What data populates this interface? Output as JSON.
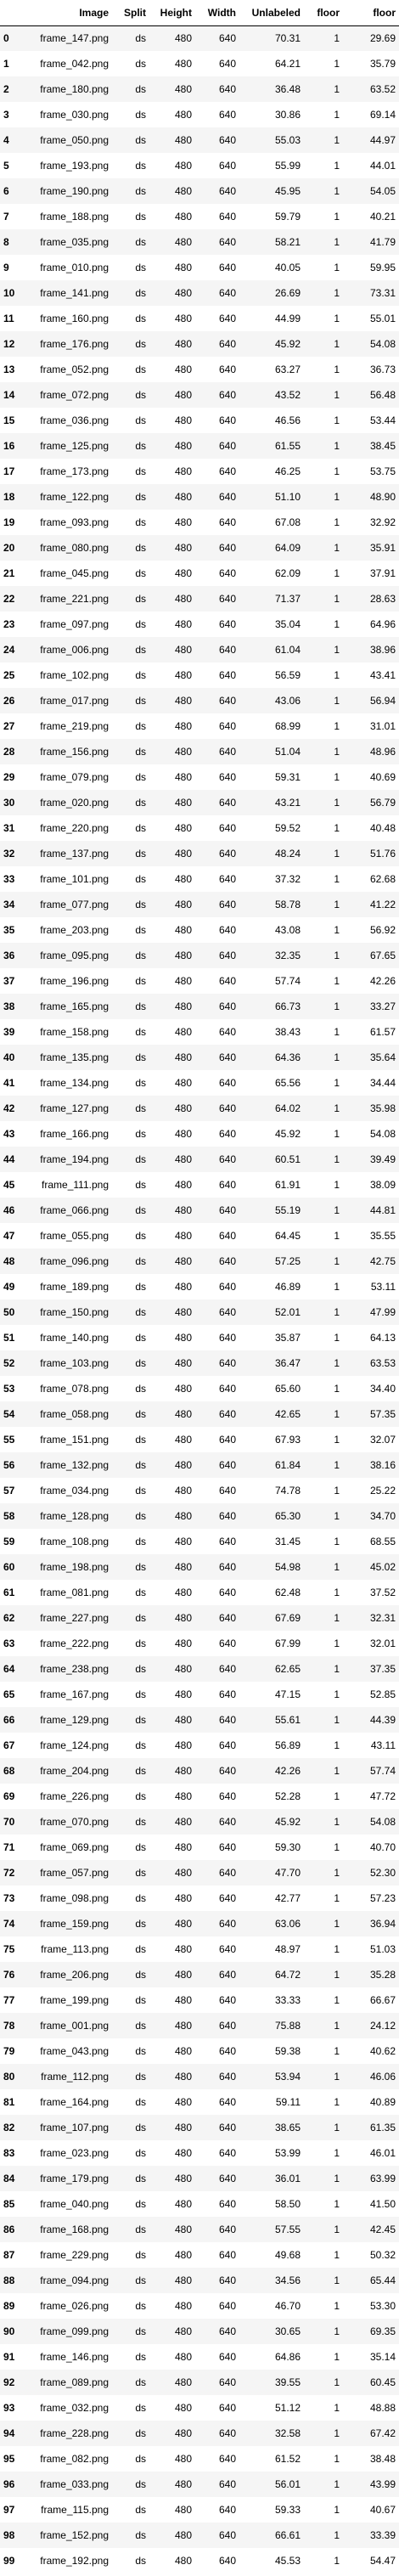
{
  "table": {
    "columns": [
      "",
      "Image",
      "Split",
      "Height",
      "Width",
      "Unlabeled",
      "floor",
      "floor"
    ],
    "rows": [
      [
        "0",
        "frame_147.png",
        "ds",
        "480",
        "640",
        "70.31",
        "1",
        "29.69"
      ],
      [
        "1",
        "frame_042.png",
        "ds",
        "480",
        "640",
        "64.21",
        "1",
        "35.79"
      ],
      [
        "2",
        "frame_180.png",
        "ds",
        "480",
        "640",
        "36.48",
        "1",
        "63.52"
      ],
      [
        "3",
        "frame_030.png",
        "ds",
        "480",
        "640",
        "30.86",
        "1",
        "69.14"
      ],
      [
        "4",
        "frame_050.png",
        "ds",
        "480",
        "640",
        "55.03",
        "1",
        "44.97"
      ],
      [
        "5",
        "frame_193.png",
        "ds",
        "480",
        "640",
        "55.99",
        "1",
        "44.01"
      ],
      [
        "6",
        "frame_190.png",
        "ds",
        "480",
        "640",
        "45.95",
        "1",
        "54.05"
      ],
      [
        "7",
        "frame_188.png",
        "ds",
        "480",
        "640",
        "59.79",
        "1",
        "40.21"
      ],
      [
        "8",
        "frame_035.png",
        "ds",
        "480",
        "640",
        "58.21",
        "1",
        "41.79"
      ],
      [
        "9",
        "frame_010.png",
        "ds",
        "480",
        "640",
        "40.05",
        "1",
        "59.95"
      ],
      [
        "10",
        "frame_141.png",
        "ds",
        "480",
        "640",
        "26.69",
        "1",
        "73.31"
      ],
      [
        "11",
        "frame_160.png",
        "ds",
        "480",
        "640",
        "44.99",
        "1",
        "55.01"
      ],
      [
        "12",
        "frame_176.png",
        "ds",
        "480",
        "640",
        "45.92",
        "1",
        "54.08"
      ],
      [
        "13",
        "frame_052.png",
        "ds",
        "480",
        "640",
        "63.27",
        "1",
        "36.73"
      ],
      [
        "14",
        "frame_072.png",
        "ds",
        "480",
        "640",
        "43.52",
        "1",
        "56.48"
      ],
      [
        "15",
        "frame_036.png",
        "ds",
        "480",
        "640",
        "46.56",
        "1",
        "53.44"
      ],
      [
        "16",
        "frame_125.png",
        "ds",
        "480",
        "640",
        "61.55",
        "1",
        "38.45"
      ],
      [
        "17",
        "frame_173.png",
        "ds",
        "480",
        "640",
        "46.25",
        "1",
        "53.75"
      ],
      [
        "18",
        "frame_122.png",
        "ds",
        "480",
        "640",
        "51.10",
        "1",
        "48.90"
      ],
      [
        "19",
        "frame_093.png",
        "ds",
        "480",
        "640",
        "67.08",
        "1",
        "32.92"
      ],
      [
        "20",
        "frame_080.png",
        "ds",
        "480",
        "640",
        "64.09",
        "1",
        "35.91"
      ],
      [
        "21",
        "frame_045.png",
        "ds",
        "480",
        "640",
        "62.09",
        "1",
        "37.91"
      ],
      [
        "22",
        "frame_221.png",
        "ds",
        "480",
        "640",
        "71.37",
        "1",
        "28.63"
      ],
      [
        "23",
        "frame_097.png",
        "ds",
        "480",
        "640",
        "35.04",
        "1",
        "64.96"
      ],
      [
        "24",
        "frame_006.png",
        "ds",
        "480",
        "640",
        "61.04",
        "1",
        "38.96"
      ],
      [
        "25",
        "frame_102.png",
        "ds",
        "480",
        "640",
        "56.59",
        "1",
        "43.41"
      ],
      [
        "26",
        "frame_017.png",
        "ds",
        "480",
        "640",
        "43.06",
        "1",
        "56.94"
      ],
      [
        "27",
        "frame_219.png",
        "ds",
        "480",
        "640",
        "68.99",
        "1",
        "31.01"
      ],
      [
        "28",
        "frame_156.png",
        "ds",
        "480",
        "640",
        "51.04",
        "1",
        "48.96"
      ],
      [
        "29",
        "frame_079.png",
        "ds",
        "480",
        "640",
        "59.31",
        "1",
        "40.69"
      ],
      [
        "30",
        "frame_020.png",
        "ds",
        "480",
        "640",
        "43.21",
        "1",
        "56.79"
      ],
      [
        "31",
        "frame_220.png",
        "ds",
        "480",
        "640",
        "59.52",
        "1",
        "40.48"
      ],
      [
        "32",
        "frame_137.png",
        "ds",
        "480",
        "640",
        "48.24",
        "1",
        "51.76"
      ],
      [
        "33",
        "frame_101.png",
        "ds",
        "480",
        "640",
        "37.32",
        "1",
        "62.68"
      ],
      [
        "34",
        "frame_077.png",
        "ds",
        "480",
        "640",
        "58.78",
        "1",
        "41.22"
      ],
      [
        "35",
        "frame_203.png",
        "ds",
        "480",
        "640",
        "43.08",
        "1",
        "56.92"
      ],
      [
        "36",
        "frame_095.png",
        "ds",
        "480",
        "640",
        "32.35",
        "1",
        "67.65"
      ],
      [
        "37",
        "frame_196.png",
        "ds",
        "480",
        "640",
        "57.74",
        "1",
        "42.26"
      ],
      [
        "38",
        "frame_165.png",
        "ds",
        "480",
        "640",
        "66.73",
        "1",
        "33.27"
      ],
      [
        "39",
        "frame_158.png",
        "ds",
        "480",
        "640",
        "38.43",
        "1",
        "61.57"
      ],
      [
        "40",
        "frame_135.png",
        "ds",
        "480",
        "640",
        "64.36",
        "1",
        "35.64"
      ],
      [
        "41",
        "frame_134.png",
        "ds",
        "480",
        "640",
        "65.56",
        "1",
        "34.44"
      ],
      [
        "42",
        "frame_127.png",
        "ds",
        "480",
        "640",
        "64.02",
        "1",
        "35.98"
      ],
      [
        "43",
        "frame_166.png",
        "ds",
        "480",
        "640",
        "45.92",
        "1",
        "54.08"
      ],
      [
        "44",
        "frame_194.png",
        "ds",
        "480",
        "640",
        "60.51",
        "1",
        "39.49"
      ],
      [
        "45",
        "frame_111.png",
        "ds",
        "480",
        "640",
        "61.91",
        "1",
        "38.09"
      ],
      [
        "46",
        "frame_066.png",
        "ds",
        "480",
        "640",
        "55.19",
        "1",
        "44.81"
      ],
      [
        "47",
        "frame_055.png",
        "ds",
        "480",
        "640",
        "64.45",
        "1",
        "35.55"
      ],
      [
        "48",
        "frame_096.png",
        "ds",
        "480",
        "640",
        "57.25",
        "1",
        "42.75"
      ],
      [
        "49",
        "frame_189.png",
        "ds",
        "480",
        "640",
        "46.89",
        "1",
        "53.11"
      ],
      [
        "50",
        "frame_150.png",
        "ds",
        "480",
        "640",
        "52.01",
        "1",
        "47.99"
      ],
      [
        "51",
        "frame_140.png",
        "ds",
        "480",
        "640",
        "35.87",
        "1",
        "64.13"
      ],
      [
        "52",
        "frame_103.png",
        "ds",
        "480",
        "640",
        "36.47",
        "1",
        "63.53"
      ],
      [
        "53",
        "frame_078.png",
        "ds",
        "480",
        "640",
        "65.60",
        "1",
        "34.40"
      ],
      [
        "54",
        "frame_058.png",
        "ds",
        "480",
        "640",
        "42.65",
        "1",
        "57.35"
      ],
      [
        "55",
        "frame_151.png",
        "ds",
        "480",
        "640",
        "67.93",
        "1",
        "32.07"
      ],
      [
        "56",
        "frame_132.png",
        "ds",
        "480",
        "640",
        "61.84",
        "1",
        "38.16"
      ],
      [
        "57",
        "frame_034.png",
        "ds",
        "480",
        "640",
        "74.78",
        "1",
        "25.22"
      ],
      [
        "58",
        "frame_128.png",
        "ds",
        "480",
        "640",
        "65.30",
        "1",
        "34.70"
      ],
      [
        "59",
        "frame_108.png",
        "ds",
        "480",
        "640",
        "31.45",
        "1",
        "68.55"
      ],
      [
        "60",
        "frame_198.png",
        "ds",
        "480",
        "640",
        "54.98",
        "1",
        "45.02"
      ],
      [
        "61",
        "frame_081.png",
        "ds",
        "480",
        "640",
        "62.48",
        "1",
        "37.52"
      ],
      [
        "62",
        "frame_227.png",
        "ds",
        "480",
        "640",
        "67.69",
        "1",
        "32.31"
      ],
      [
        "63",
        "frame_222.png",
        "ds",
        "480",
        "640",
        "67.99",
        "1",
        "32.01"
      ],
      [
        "64",
        "frame_238.png",
        "ds",
        "480",
        "640",
        "62.65",
        "1",
        "37.35"
      ],
      [
        "65",
        "frame_167.png",
        "ds",
        "480",
        "640",
        "47.15",
        "1",
        "52.85"
      ],
      [
        "66",
        "frame_129.png",
        "ds",
        "480",
        "640",
        "55.61",
        "1",
        "44.39"
      ],
      [
        "67",
        "frame_124.png",
        "ds",
        "480",
        "640",
        "56.89",
        "1",
        "43.11"
      ],
      [
        "68",
        "frame_204.png",
        "ds",
        "480",
        "640",
        "42.26",
        "1",
        "57.74"
      ],
      [
        "69",
        "frame_226.png",
        "ds",
        "480",
        "640",
        "52.28",
        "1",
        "47.72"
      ],
      [
        "70",
        "frame_070.png",
        "ds",
        "480",
        "640",
        "45.92",
        "1",
        "54.08"
      ],
      [
        "71",
        "frame_069.png",
        "ds",
        "480",
        "640",
        "59.30",
        "1",
        "40.70"
      ],
      [
        "72",
        "frame_057.png",
        "ds",
        "480",
        "640",
        "47.70",
        "1",
        "52.30"
      ],
      [
        "73",
        "frame_098.png",
        "ds",
        "480",
        "640",
        "42.77",
        "1",
        "57.23"
      ],
      [
        "74",
        "frame_159.png",
        "ds",
        "480",
        "640",
        "63.06",
        "1",
        "36.94"
      ],
      [
        "75",
        "frame_113.png",
        "ds",
        "480",
        "640",
        "48.97",
        "1",
        "51.03"
      ],
      [
        "76",
        "frame_206.png",
        "ds",
        "480",
        "640",
        "64.72",
        "1",
        "35.28"
      ],
      [
        "77",
        "frame_199.png",
        "ds",
        "480",
        "640",
        "33.33",
        "1",
        "66.67"
      ],
      [
        "78",
        "frame_001.png",
        "ds",
        "480",
        "640",
        "75.88",
        "1",
        "24.12"
      ],
      [
        "79",
        "frame_043.png",
        "ds",
        "480",
        "640",
        "59.38",
        "1",
        "40.62"
      ],
      [
        "80",
        "frame_112.png",
        "ds",
        "480",
        "640",
        "53.94",
        "1",
        "46.06"
      ],
      [
        "81",
        "frame_164.png",
        "ds",
        "480",
        "640",
        "59.11",
        "1",
        "40.89"
      ],
      [
        "82",
        "frame_107.png",
        "ds",
        "480",
        "640",
        "38.65",
        "1",
        "61.35"
      ],
      [
        "83",
        "frame_023.png",
        "ds",
        "480",
        "640",
        "53.99",
        "1",
        "46.01"
      ],
      [
        "84",
        "frame_179.png",
        "ds",
        "480",
        "640",
        "36.01",
        "1",
        "63.99"
      ],
      [
        "85",
        "frame_040.png",
        "ds",
        "480",
        "640",
        "58.50",
        "1",
        "41.50"
      ],
      [
        "86",
        "frame_168.png",
        "ds",
        "480",
        "640",
        "57.55",
        "1",
        "42.45"
      ],
      [
        "87",
        "frame_229.png",
        "ds",
        "480",
        "640",
        "49.68",
        "1",
        "50.32"
      ],
      [
        "88",
        "frame_094.png",
        "ds",
        "480",
        "640",
        "34.56",
        "1",
        "65.44"
      ],
      [
        "89",
        "frame_026.png",
        "ds",
        "480",
        "640",
        "46.70",
        "1",
        "53.30"
      ],
      [
        "90",
        "frame_099.png",
        "ds",
        "480",
        "640",
        "30.65",
        "1",
        "69.35"
      ],
      [
        "91",
        "frame_146.png",
        "ds",
        "480",
        "640",
        "64.86",
        "1",
        "35.14"
      ],
      [
        "92",
        "frame_089.png",
        "ds",
        "480",
        "640",
        "39.55",
        "1",
        "60.45"
      ],
      [
        "93",
        "frame_032.png",
        "ds",
        "480",
        "640",
        "51.12",
        "1",
        "48.88"
      ],
      [
        "94",
        "frame_228.png",
        "ds",
        "480",
        "640",
        "32.58",
        "1",
        "67.42"
      ],
      [
        "95",
        "frame_082.png",
        "ds",
        "480",
        "640",
        "61.52",
        "1",
        "38.48"
      ],
      [
        "96",
        "frame_033.png",
        "ds",
        "480",
        "640",
        "56.01",
        "1",
        "43.99"
      ],
      [
        "97",
        "frame_115.png",
        "ds",
        "480",
        "640",
        "59.33",
        "1",
        "40.67"
      ],
      [
        "98",
        "frame_152.png",
        "ds",
        "480",
        "640",
        "66.61",
        "1",
        "33.39"
      ],
      [
        "99",
        "frame_192.png",
        "ds",
        "480",
        "640",
        "45.53",
        "1",
        "54.47"
      ]
    ]
  }
}
